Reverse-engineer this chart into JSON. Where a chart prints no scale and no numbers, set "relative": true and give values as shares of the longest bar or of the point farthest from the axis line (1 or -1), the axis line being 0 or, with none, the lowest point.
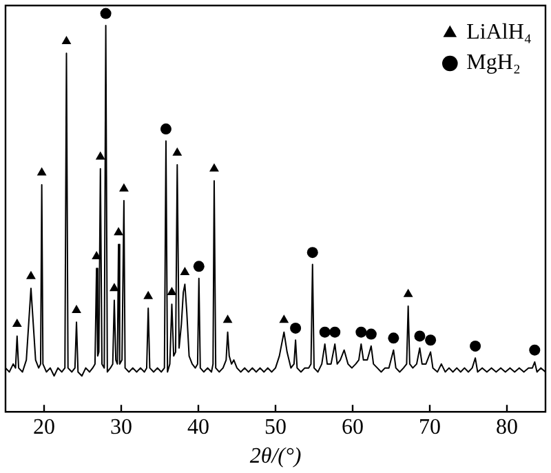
{
  "chart_data": {
    "type": "line",
    "xlabel": "2θ/(°)",
    "relative": true,
    "xlim": [
      15,
      85
    ],
    "xticks": [
      20,
      30,
      40,
      50,
      60,
      70,
      80
    ],
    "grid": false,
    "legend": "top right",
    "series": [
      {
        "type": "line",
        "color": "#000000",
        "marker": "none",
        "x": [
          15.0,
          15.5,
          16.0,
          16.3,
          16.5,
          16.7,
          17.2,
          17.7,
          18.0,
          18.3,
          18.6,
          18.9,
          19.3,
          19.55,
          19.7,
          19.85,
          20.3,
          20.8,
          21.3,
          21.8,
          22.3,
          22.7,
          22.9,
          23.1,
          23.6,
          24.0,
          24.2,
          24.4,
          24.9,
          25.4,
          25.9,
          26.3,
          26.6,
          26.8,
          26.95,
          27.1,
          27.3,
          27.5,
          27.8,
          28.0,
          28.2,
          28.6,
          28.9,
          29.1,
          29.3,
          29.5,
          29.65,
          29.8,
          30.1,
          30.35,
          30.5,
          31.0,
          31.5,
          32.0,
          32.5,
          33.0,
          33.3,
          33.5,
          33.7,
          34.2,
          34.7,
          35.2,
          35.6,
          35.8,
          36.0,
          36.3,
          36.56,
          36.8,
          37.05,
          37.26,
          37.5,
          37.8,
          38.05,
          38.25,
          38.5,
          38.8,
          39.2,
          39.6,
          39.9,
          40.07,
          40.25,
          40.7,
          41.2,
          41.7,
          41.9,
          42.05,
          42.25,
          42.7,
          43.2,
          43.6,
          43.8,
          44.0,
          44.3,
          44.6,
          45.0,
          45.5,
          46.0,
          46.5,
          47.0,
          47.5,
          48.0,
          48.5,
          49.0,
          49.5,
          50.0,
          50.5,
          51.1,
          51.5,
          52.0,
          52.4,
          52.6,
          52.8,
          53.3,
          53.8,
          54.3,
          54.6,
          54.8,
          55.0,
          55.5,
          56.0,
          56.4,
          56.7,
          57.2,
          57.7,
          58.0,
          58.4,
          58.9,
          59.4,
          59.9,
          60.4,
          60.8,
          61.1,
          61.4,
          61.9,
          62.4,
          62.7,
          63.2,
          63.7,
          64.2,
          64.7,
          65.3,
          65.6,
          66.1,
          66.6,
          67.0,
          67.2,
          67.4,
          67.8,
          68.3,
          68.7,
          69.0,
          69.5,
          70.1,
          70.4,
          71.0,
          71.5,
          72.0,
          72.5,
          73.0,
          73.5,
          74.0,
          74.5,
          75.0,
          75.5,
          75.9,
          76.2,
          76.8,
          77.4,
          78.0,
          78.6,
          79.2,
          79.8,
          80.4,
          81.0,
          81.6,
          82.2,
          82.8,
          83.3,
          83.6,
          83.9,
          84.4,
          85.0
        ],
        "values": [
          0.11,
          0.1,
          0.12,
          0.11,
          0.19,
          0.11,
          0.1,
          0.13,
          0.22,
          0.31,
          0.22,
          0.13,
          0.11,
          0.12,
          0.57,
          0.12,
          0.1,
          0.11,
          0.09,
          0.11,
          0.1,
          0.11,
          0.9,
          0.11,
          0.1,
          0.11,
          0.225,
          0.1,
          0.09,
          0.11,
          0.1,
          0.11,
          0.12,
          0.36,
          0.14,
          0.15,
          0.61,
          0.12,
          0.11,
          0.97,
          0.1,
          0.11,
          0.12,
          0.28,
          0.13,
          0.12,
          0.42,
          0.12,
          0.13,
          0.53,
          0.11,
          0.1,
          0.11,
          0.1,
          0.11,
          0.1,
          0.11,
          0.26,
          0.11,
          0.1,
          0.11,
          0.1,
          0.11,
          0.68,
          0.1,
          0.12,
          0.27,
          0.14,
          0.15,
          0.62,
          0.16,
          0.22,
          0.3,
          0.32,
          0.25,
          0.14,
          0.12,
          0.11,
          0.12,
          0.335,
          0.11,
          0.1,
          0.11,
          0.1,
          0.12,
          0.58,
          0.11,
          0.1,
          0.11,
          0.13,
          0.2,
          0.14,
          0.12,
          0.13,
          0.11,
          0.1,
          0.11,
          0.1,
          0.11,
          0.1,
          0.11,
          0.1,
          0.11,
          0.1,
          0.11,
          0.14,
          0.2,
          0.15,
          0.11,
          0.12,
          0.18,
          0.11,
          0.1,
          0.11,
          0.11,
          0.12,
          0.37,
          0.11,
          0.1,
          0.12,
          0.17,
          0.12,
          0.12,
          0.17,
          0.12,
          0.13,
          0.155,
          0.12,
          0.11,
          0.12,
          0.13,
          0.17,
          0.13,
          0.13,
          0.165,
          0.12,
          0.11,
          0.1,
          0.11,
          0.11,
          0.155,
          0.11,
          0.1,
          0.11,
          0.12,
          0.265,
          0.12,
          0.11,
          0.12,
          0.16,
          0.12,
          0.12,
          0.15,
          0.11,
          0.1,
          0.12,
          0.1,
          0.11,
          0.1,
          0.11,
          0.1,
          0.11,
          0.1,
          0.11,
          0.135,
          0.1,
          0.11,
          0.1,
          0.11,
          0.1,
          0.11,
          0.1,
          0.11,
          0.1,
          0.11,
          0.1,
          0.11,
          0.11,
          0.125,
          0.1,
          0.11,
          0.1
        ]
      },
      {
        "type": "scatter",
        "name": "LiAlH₄",
        "color": "#000000",
        "marker": "triangle",
        "x": [
          16.5,
          18.3,
          19.7,
          22.9,
          24.2,
          26.8,
          27.3,
          29.1,
          29.65,
          30.35,
          33.5,
          36.56,
          37.26,
          38.25,
          42.05,
          43.8,
          51.1,
          67.2
        ],
        "values": [
          0.22,
          0.34,
          0.6,
          0.93,
          0.255,
          0.39,
          0.64,
          0.31,
          0.45,
          0.56,
          0.29,
          0.3,
          0.65,
          0.35,
          0.61,
          0.23,
          0.23,
          0.295
        ]
      },
      {
        "type": "scatter",
        "name": "MgH₂",
        "color": "#000000",
        "marker": "circle",
        "x": [
          28.0,
          35.8,
          40.07,
          52.6,
          54.8,
          56.4,
          57.7,
          61.1,
          62.4,
          65.3,
          68.7,
          70.1,
          75.9,
          83.6
        ],
        "values": [
          1.0,
          0.71,
          0.365,
          0.21,
          0.4,
          0.2,
          0.2,
          0.2,
          0.195,
          0.185,
          0.19,
          0.18,
          0.165,
          0.155
        ]
      }
    ]
  }
}
